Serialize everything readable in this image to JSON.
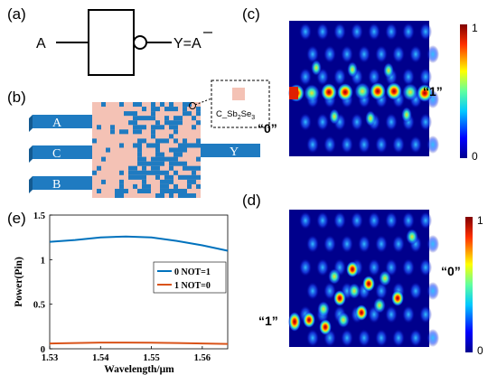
{
  "panels": {
    "a": {
      "label": "(a)",
      "input": "A",
      "output": "Y=A"
    },
    "b": {
      "label": "(b)",
      "inputs": [
        "A",
        "C",
        "B"
      ],
      "output": "Y",
      "inset_material_base": "C_Sb",
      "inset_sub1": "2",
      "inset_mid": "Se",
      "inset_sub2": "3"
    },
    "c": {
      "label": "(c)",
      "output_state": "“1”",
      "input_state": "“0”",
      "colorbar_max": "1",
      "colorbar_min": "0"
    },
    "d": {
      "label": "(d)",
      "output_state": "“0”",
      "input_state": "“1”",
      "colorbar_max": "1",
      "colorbar_min": "0"
    },
    "e": {
      "label": "(e)"
    }
  },
  "colors": {
    "waveguide": "#1f7bc1",
    "pcm": "#f4c2b5",
    "series1": "#0072bd",
    "series2": "#d95319"
  },
  "chart_data": {
    "type": "line",
    "xlabel": "Wavelength/μm",
    "ylabel": "Power(Pin)",
    "xlim": [
      1.53,
      1.565
    ],
    "ylim": [
      0,
      1.5
    ],
    "x_ticks": [
      "1.53",
      "1.54",
      "1.55",
      "1.56"
    ],
    "x_tick_values": [
      1.53,
      1.54,
      1.55,
      1.56
    ],
    "y_ticks": [
      "0",
      "0.5",
      "1",
      "1.5"
    ],
    "y_tick_values": [
      0,
      0.5,
      1,
      1.5
    ],
    "legend_position": "right",
    "series": [
      {
        "name": "0 NOT=1",
        "color": "#0072bd",
        "x": [
          1.53,
          1.535,
          1.54,
          1.545,
          1.55,
          1.555,
          1.56,
          1.565
        ],
        "values": [
          1.2,
          1.22,
          1.25,
          1.26,
          1.25,
          1.21,
          1.16,
          1.1
        ]
      },
      {
        "name": "1 NOT=0",
        "color": "#d95319",
        "x": [
          1.53,
          1.535,
          1.54,
          1.545,
          1.55,
          1.555,
          1.56,
          1.565
        ],
        "values": [
          0.06,
          0.065,
          0.07,
          0.07,
          0.068,
          0.065,
          0.06,
          0.055
        ]
      }
    ]
  }
}
